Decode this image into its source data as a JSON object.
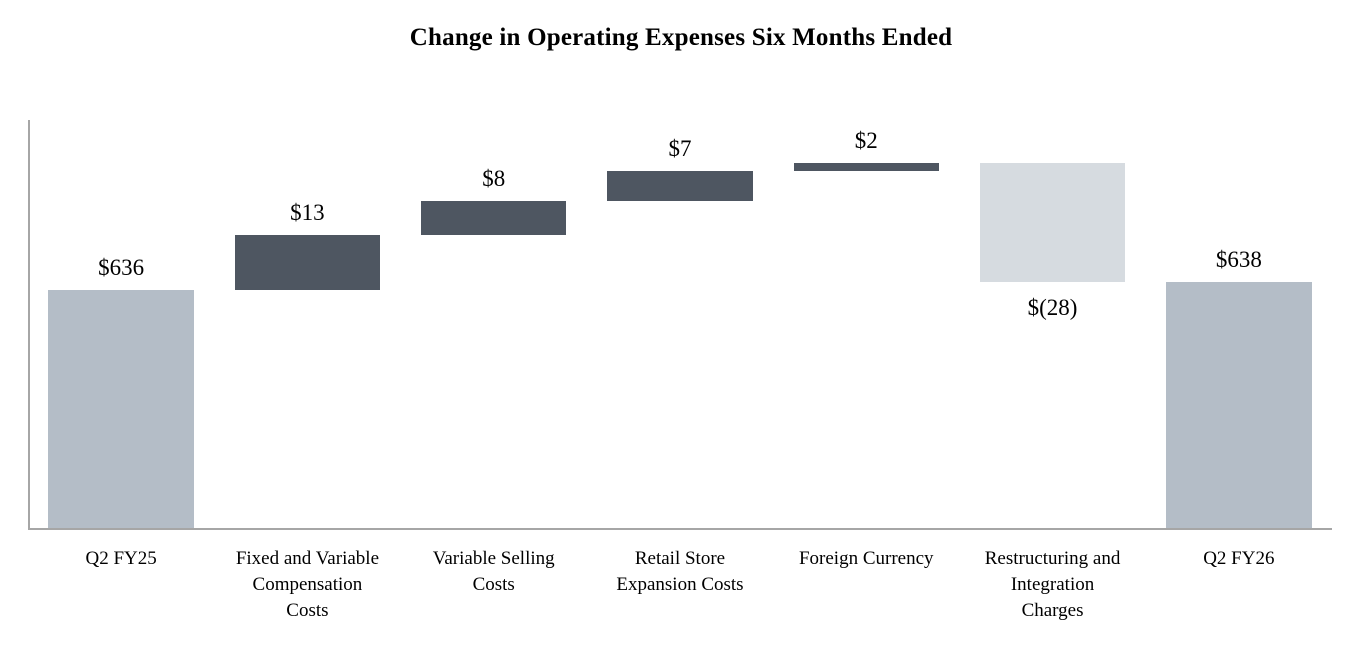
{
  "chart_data": {
    "type": "bar",
    "subtype": "waterfall",
    "title": "Change in Operating Expenses Six Months Ended",
    "categories": [
      "Q2 FY25",
      "Fixed and Variable Compensation Costs",
      "Variable Selling Costs",
      "Retail Store Expansion Costs",
      "Foreign Currency",
      "Restructuring and Integration Charges",
      "Q2 FY26"
    ],
    "category_lines": [
      [
        "Q2 FY25"
      ],
      [
        "Fixed and Variable",
        "Compensation",
        "Costs"
      ],
      [
        "Variable Selling",
        "Costs"
      ],
      [
        "Retail Store",
        "Expansion Costs"
      ],
      [
        "Foreign Currency"
      ],
      [
        "Restructuring and",
        "Integration",
        "Charges"
      ],
      [
        "Q2 FY26"
      ]
    ],
    "values": [
      636,
      13,
      8,
      7,
      2,
      -28,
      638
    ],
    "bar_roles": [
      "total",
      "increase",
      "increase",
      "increase",
      "increase",
      "decrease",
      "total"
    ],
    "bar_labels": [
      "$636",
      "$13",
      "$8",
      "$7",
      "$2",
      "$(28)",
      "$638"
    ],
    "label_positions": [
      "above",
      "above",
      "above",
      "above",
      "above",
      "below",
      "above"
    ],
    "cumulative_after": [
      636,
      649,
      657,
      664,
      666,
      638,
      638
    ],
    "xlabel": "",
    "ylabel": "",
    "ylim": [
      580,
      676
    ],
    "grid": false,
    "legend": false,
    "colors": {
      "total_bar": "#B4BDC7",
      "increase_bar": "#4E5661",
      "decrease_bar": "#D6DBE0",
      "axis_line": "#A6A6A6",
      "text": "#000000"
    }
  }
}
